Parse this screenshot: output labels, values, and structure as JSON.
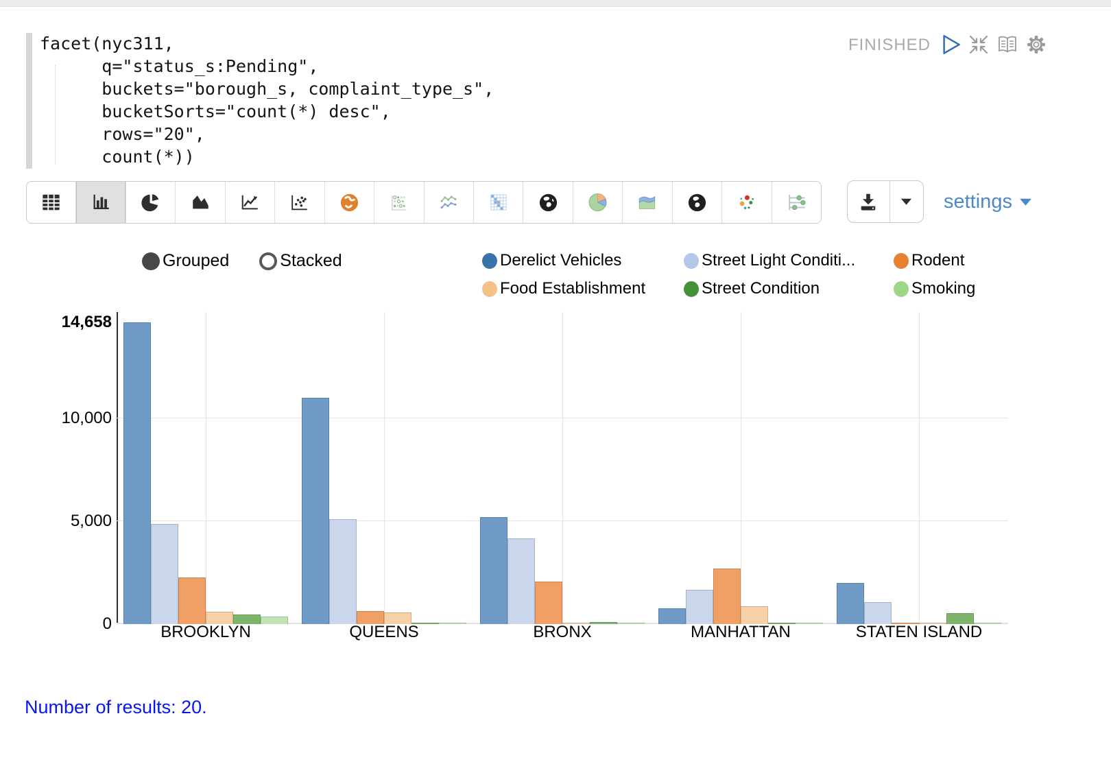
{
  "editor": {
    "status": "FINISHED",
    "code_lines": [
      "facet(nyc311,",
      "      q=\"status_s:Pending\",",
      "      buckets=\"borough_s, complaint_type_s\",",
      "      bucketSorts=\"count(*) desc\",",
      "      rows=\"20\",",
      "      count(*))"
    ],
    "header_icons": [
      "run-icon",
      "collapse-icon",
      "reader-icon",
      "gear-icon"
    ]
  },
  "toolbar": {
    "selected_index": 1,
    "icons": [
      "table",
      "bar-chart",
      "pie-chart",
      "area-chart",
      "line-chart",
      "scatter-plot",
      "map-orange",
      "dot-matrix",
      "multi-line",
      "heatmap",
      "globe",
      "pie-pastel",
      "stacked-area",
      "globe-2",
      "bubble",
      "sliders"
    ],
    "download_icon": "download-icon",
    "settings_label": "settings"
  },
  "controls": {
    "grouped_label": "Grouped",
    "stacked_label": "Stacked",
    "selected": "grouped"
  },
  "chart_data": {
    "type": "bar",
    "mode": "grouped",
    "categories": [
      "BROOKLYN",
      "QUEENS",
      "BRONX",
      "MANHATTAN",
      "STATEN ISLAND"
    ],
    "series": [
      {
        "name": "Derelict Vehicles",
        "legend_label": "Derelict Vehicles",
        "legend_color": "#3a72aa",
        "bar_color": "#6f9bc6",
        "values": [
          14658,
          11000,
          5200,
          780,
          2000
        ]
      },
      {
        "name": "Street Light Condition",
        "legend_label": "Street Light Conditi...",
        "legend_color": "#b3c8e8",
        "bar_color": "#c9d6ec",
        "values": [
          4850,
          5100,
          4150,
          1650,
          1080
        ]
      },
      {
        "name": "Rodent",
        "legend_label": "Rodent",
        "legend_color": "#e8802f",
        "bar_color": "#f0a064",
        "values": [
          2280,
          620,
          2080,
          2700,
          80
        ]
      },
      {
        "name": "Food Establishment",
        "legend_label": "Food Establishment",
        "legend_color": "#f5c189",
        "bar_color": "#f8d0a8",
        "values": [
          600,
          560,
          60,
          860,
          60
        ]
      },
      {
        "name": "Street Condition",
        "legend_label": "Street Condition",
        "legend_color": "#45913a",
        "bar_color": "#7fb56a",
        "values": [
          450,
          80,
          100,
          80,
          530
        ]
      },
      {
        "name": "Smoking",
        "legend_label": "Smoking",
        "legend_color": "#9ed687",
        "bar_color": "#c2e3b2",
        "values": [
          370,
          60,
          60,
          50,
          40
        ]
      }
    ],
    "ylim": [
      0,
      14658
    ],
    "yticks": [
      {
        "label": "0",
        "value": 0
      },
      {
        "label": "5,000",
        "value": 5000
      },
      {
        "label": "10,000",
        "value": 10000
      },
      {
        "label": "14,658",
        "value": 14658,
        "bold": true
      }
    ],
    "grid": true,
    "legend_position": "top",
    "title": "",
    "xlabel": "",
    "ylabel": ""
  },
  "footer": {
    "results_text": "Number of results: 20."
  }
}
